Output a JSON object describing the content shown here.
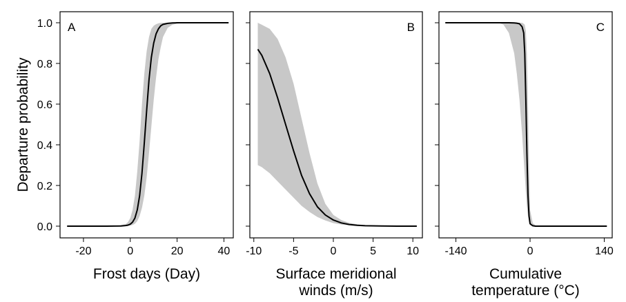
{
  "chart_data": {
    "type": "line",
    "ylabel": "Departure probability",
    "yticks": [
      "0.0",
      "0.2",
      "0.4",
      "0.6",
      "0.8",
      "1.0"
    ],
    "ylim": [
      0,
      1
    ],
    "panels": [
      {
        "letter": "A",
        "xlabel_lines": [
          "Frost days (Day)"
        ],
        "xlim": [
          -30,
          44
        ],
        "xticks": [
          -20,
          0,
          20,
          40
        ],
        "xtick_labels": [
          "-20",
          "0",
          "20",
          "40"
        ],
        "band_color": "#c8c8c8",
        "line_color": "#000000",
        "x": [
          -27,
          -20,
          -10,
          -4,
          -2,
          -1,
          0,
          1,
          2,
          3,
          4,
          5,
          6,
          7,
          8,
          9,
          10,
          11,
          12,
          13,
          14,
          16,
          18,
          20,
          25,
          30,
          42
        ],
        "mean": [
          0,
          0,
          0,
          0.001,
          0.003,
          0.005,
          0.01,
          0.02,
          0.04,
          0.08,
          0.15,
          0.26,
          0.41,
          0.57,
          0.72,
          0.83,
          0.9,
          0.945,
          0.97,
          0.985,
          0.992,
          0.997,
          0.999,
          1,
          1,
          1,
          1
        ],
        "lower": [
          0,
          0,
          0,
          0,
          0,
          0.001,
          0.003,
          0.006,
          0.012,
          0.025,
          0.05,
          0.09,
          0.15,
          0.24,
          0.36,
          0.49,
          0.62,
          0.73,
          0.82,
          0.88,
          0.93,
          0.975,
          0.99,
          0.996,
          1,
          1,
          1
        ],
        "upper": [
          0,
          0,
          0,
          0.005,
          0.01,
          0.02,
          0.04,
          0.08,
          0.15,
          0.27,
          0.42,
          0.6,
          0.75,
          0.86,
          0.93,
          0.97,
          0.985,
          0.993,
          0.997,
          1,
          1,
          1,
          1,
          1,
          1,
          1,
          1
        ]
      },
      {
        "letter": "B",
        "xlabel_lines": [
          "Surface meridional",
          "winds (m/s)"
        ],
        "xlim": [
          -10.5,
          11.2
        ],
        "xticks": [
          -10,
          -5,
          0,
          5,
          10
        ],
        "xtick_labels": [
          "-10",
          "-5",
          "0",
          "5",
          "10"
        ],
        "band_color": "#c8c8c8",
        "line_color": "#000000",
        "x": [
          -9.5,
          -9,
          -8,
          -7,
          -6,
          -5,
          -4,
          -3,
          -2,
          -1,
          0,
          1,
          2,
          3,
          4,
          6,
          8,
          10.5
        ],
        "mean": [
          0.87,
          0.84,
          0.75,
          0.63,
          0.5,
          0.37,
          0.25,
          0.16,
          0.095,
          0.055,
          0.03,
          0.016,
          0.008,
          0.004,
          0.002,
          0.001,
          0,
          0
        ],
        "lower": [
          0.3,
          0.29,
          0.26,
          0.22,
          0.18,
          0.14,
          0.1,
          0.07,
          0.045,
          0.028,
          0.015,
          0.008,
          0.004,
          0.002,
          0.001,
          0,
          0,
          0
        ],
        "upper": [
          1,
          0.99,
          0.97,
          0.92,
          0.83,
          0.7,
          0.53,
          0.36,
          0.21,
          0.11,
          0.055,
          0.03,
          0.016,
          0.009,
          0.005,
          0.002,
          0.001,
          0
        ]
      },
      {
        "letter": "C",
        "xlabel_lines": [
          "Cumulative",
          "temperature (°C)"
        ],
        "xlim": [
          -172,
          155
        ],
        "xticks": [
          -140,
          0,
          140
        ],
        "xtick_labels": [
          "-140",
          "0",
          "140"
        ],
        "band_color": "#c8c8c8",
        "line_color": "#000000",
        "x": [
          -160,
          -100,
          -60,
          -50,
          -40,
          -30,
          -25,
          -20,
          -15,
          -12,
          -10,
          -8,
          -6,
          -4,
          -2,
          0,
          5,
          10,
          20,
          145
        ],
        "mean": [
          1,
          1,
          1,
          1,
          1,
          0.999,
          0.998,
          0.995,
          0.98,
          0.95,
          0.85,
          0.62,
          0.36,
          0.15,
          0.05,
          0.012,
          0.002,
          0,
          0,
          0
        ],
        "lower": [
          1,
          1,
          1,
          0.99,
          0.95,
          0.85,
          0.75,
          0.62,
          0.45,
          0.33,
          0.25,
          0.17,
          0.1,
          0.05,
          0.02,
          0.005,
          0,
          0,
          0,
          0
        ],
        "upper": [
          1,
          1,
          1,
          1,
          1,
          1,
          1,
          1,
          1,
          0.995,
          0.99,
          0.96,
          0.85,
          0.6,
          0.3,
          0.08,
          0.015,
          0.004,
          0,
          0
        ]
      }
    ]
  }
}
